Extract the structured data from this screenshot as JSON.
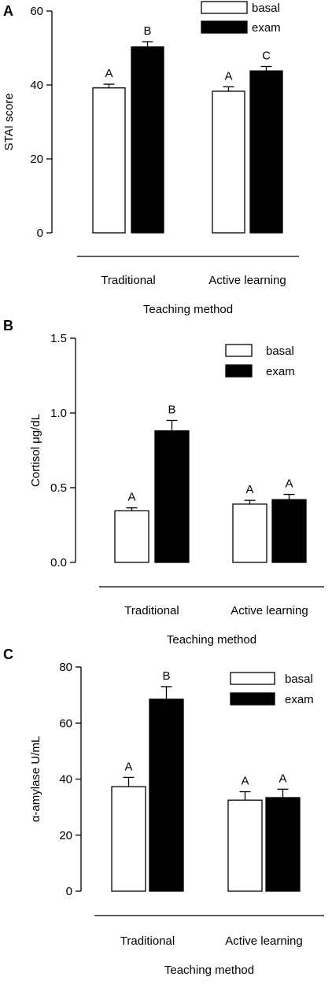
{
  "figure_title": "",
  "chart_data": [
    {
      "type": "bar",
      "panel_label": "A",
      "title": "",
      "ylabel": "STAI score",
      "xlabel": "Teaching method",
      "categories": [
        "Traditional",
        "Active learning"
      ],
      "ylim": [
        0,
        60
      ],
      "yticks": [
        "0",
        "20",
        "40",
        "60"
      ],
      "legend_position": "top-right",
      "series": [
        {
          "name": "basal",
          "color": "#ffffff",
          "values": [
            39.2,
            38.3
          ],
          "errors": [
            1.0,
            1.2
          ],
          "labels": [
            "A",
            "A"
          ]
        },
        {
          "name": "exam",
          "color": "#000000",
          "values": [
            50.3,
            43.8
          ],
          "errors": [
            1.4,
            1.2
          ],
          "labels": [
            "B",
            "C"
          ]
        }
      ]
    },
    {
      "type": "bar",
      "panel_label": "B",
      "title": "",
      "ylabel": "Cortisol μg/dL",
      "xlabel": "Teaching method",
      "categories": [
        "Traditional",
        "Active learning"
      ],
      "ylim": [
        0,
        1.5
      ],
      "yticks": [
        "0.0",
        "0.5",
        "1.0",
        "1.5"
      ],
      "legend_position": "top-right",
      "series": [
        {
          "name": "basal",
          "color": "#ffffff",
          "values": [
            0.345,
            0.39
          ],
          "errors": [
            0.02,
            0.025
          ],
          "labels": [
            "A",
            "A"
          ]
        },
        {
          "name": "exam",
          "color": "#000000",
          "values": [
            0.88,
            0.42
          ],
          "errors": [
            0.07,
            0.035
          ],
          "labels": [
            "B",
            "A"
          ]
        }
      ]
    },
    {
      "type": "bar",
      "panel_label": "C",
      "title": "",
      "ylabel": "α-amylase U/mL",
      "xlabel": "Teaching method",
      "categories": [
        "Traditional",
        "Active learning"
      ],
      "ylim": [
        0,
        80
      ],
      "yticks": [
        "0",
        "20",
        "40",
        "60",
        "80"
      ],
      "legend_position": "top-right",
      "series": [
        {
          "name": "basal",
          "color": "#ffffff",
          "values": [
            37.3,
            32.5
          ],
          "errors": [
            3.3,
            3.0
          ],
          "labels": [
            "A",
            "A"
          ]
        },
        {
          "name": "exam",
          "color": "#000000",
          "values": [
            68.5,
            33.4
          ],
          "errors": [
            4.5,
            3.0
          ],
          "labels": [
            "B",
            "A"
          ]
        }
      ]
    }
  ]
}
